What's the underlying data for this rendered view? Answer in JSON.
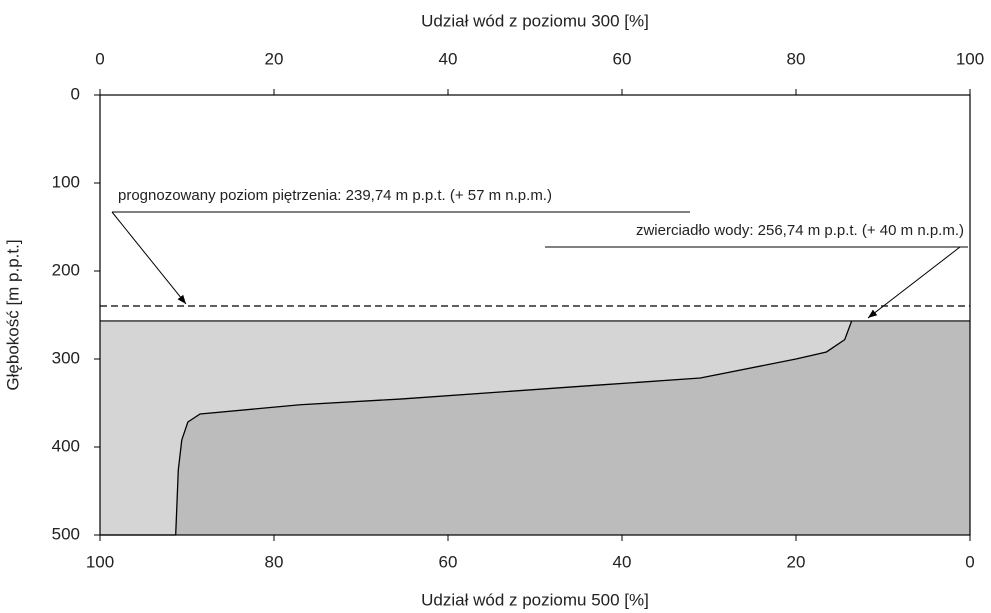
{
  "chart_data": {
    "type": "area",
    "x_label_top": "Udział wód z poziomu 300 [%]",
    "x_label_bottom": "Udział wód z poziomu 500 [%]",
    "y_label": "Głębokość [m p.p.t.]",
    "xlim": [
      0,
      100
    ],
    "xticks": [
      0,
      20,
      40,
      60,
      80,
      100
    ],
    "x2lim": [
      100,
      0
    ],
    "x2ticks": [
      100,
      80,
      60,
      40,
      20,
      0
    ],
    "ylim": [
      0,
      500
    ],
    "yticks": [
      0,
      100,
      200,
      300,
      400,
      500
    ],
    "y_inverted": true,
    "curve": {
      "x": [
        86.4,
        85.6,
        83.5,
        80,
        69,
        57.5,
        46,
        34.5,
        23,
        11.5,
        10.1,
        9.4,
        9.0,
        8.7
      ],
      "y": [
        256.74,
        278,
        292,
        300,
        321.6,
        329.5,
        337.5,
        345.5,
        352,
        362.5,
        371.6,
        392,
        426,
        500
      ],
      "color": "#000000"
    },
    "fill_left_color": "#d5d5d6",
    "fill_right_color": "#bcbcbd",
    "levels": [
      {
        "value": 239.74,
        "label": "prognozowany poziom piętrzenia: 239,74 m  p.p.t. (+ 57 m n.p.m.)",
        "style": "dashed"
      },
      {
        "value": 256.74,
        "label": "zwierciadło wody: 256,74 m p.p.t. (+ 40 m n.p.m.)",
        "style": "solid"
      }
    ]
  }
}
